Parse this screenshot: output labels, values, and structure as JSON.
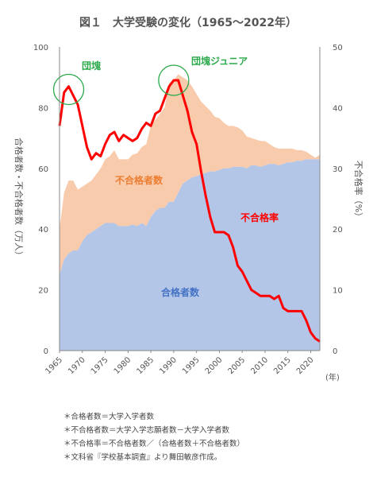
{
  "chart_data": {
    "type": "area",
    "title": "図１　大学受験の変化（1965〜2022年）",
    "ylabel_left": "合格者数・不合格者数（万人）",
    "ylabel_right": "不合格率（%）",
    "xlabel_unit": "(年)",
    "xlim": [
      1965,
      2022
    ],
    "ylim_left": [
      0,
      100
    ],
    "ylim_right": [
      0,
      50
    ],
    "x_ticks": [
      1965,
      1970,
      1975,
      1980,
      1985,
      1990,
      1995,
      2000,
      2005,
      2010,
      2015,
      2020
    ],
    "y_ticks_left": [
      0,
      20,
      40,
      60,
      80,
      100
    ],
    "y_ticks_right": [
      0,
      10,
      20,
      30,
      40,
      50
    ],
    "stacked": true,
    "series": [
      {
        "name": "合格者数",
        "axis": "left",
        "color": "#b4c6e7",
        "label_color": "#4472c4",
        "x": [
          1965,
          1966,
          1967,
          1968,
          1969,
          1970,
          1971,
          1972,
          1973,
          1974,
          1975,
          1976,
          1977,
          1978,
          1979,
          1980,
          1981,
          1982,
          1983,
          1984,
          1985,
          1986,
          1987,
          1988,
          1989,
          1990,
          1991,
          1992,
          1993,
          1994,
          1995,
          1996,
          1997,
          1998,
          1999,
          2000,
          2001,
          2002,
          2003,
          2004,
          2005,
          2006,
          2007,
          2008,
          2009,
          2010,
          2011,
          2012,
          2013,
          2014,
          2015,
          2016,
          2017,
          2018,
          2019,
          2020,
          2021,
          2022
        ],
        "values": [
          25,
          30,
          32,
          33,
          33,
          36,
          38,
          39,
          40,
          41,
          42,
          42,
          42,
          41,
          41,
          41,
          41.5,
          41,
          42,
          41,
          44,
          46,
          47,
          47,
          49,
          49,
          52,
          55,
          56,
          57,
          57.5,
          58,
          58.5,
          59,
          59,
          59.5,
          60,
          60,
          60.5,
          60.5,
          60.5,
          60,
          61,
          61,
          60.5,
          61,
          61.5,
          61.5,
          61,
          61.5,
          62,
          62,
          62.5,
          62.5,
          63,
          63,
          63,
          63
        ]
      },
      {
        "name": "不合格者数",
        "axis": "left",
        "color": "#f8cbad",
        "label_color": "#ed7d31",
        "x": [
          1965,
          1966,
          1967,
          1968,
          1969,
          1970,
          1971,
          1972,
          1973,
          1974,
          1975,
          1976,
          1977,
          1978,
          1979,
          1980,
          1981,
          1982,
          1983,
          1984,
          1985,
          1986,
          1987,
          1988,
          1989,
          1990,
          1991,
          1992,
          1993,
          1994,
          1995,
          1996,
          1997,
          1998,
          1999,
          2000,
          2001,
          2002,
          2003,
          2004,
          2005,
          2006,
          2007,
          2008,
          2009,
          2010,
          2011,
          2012,
          2013,
          2014,
          2015,
          2016,
          2017,
          2018,
          2019,
          2020,
          2021,
          2022
        ],
        "values": [
          15,
          22,
          24,
          23,
          20,
          18,
          17,
          17,
          18,
          19,
          21,
          22,
          24,
          22,
          22,
          22,
          23,
          24,
          25,
          27,
          30,
          30,
          31,
          33,
          39,
          40,
          39,
          35,
          33,
          30,
          27,
          24,
          22,
          20,
          18,
          17,
          15,
          14,
          13.5,
          13,
          12,
          10.5,
          9,
          8.5,
          8.5,
          8,
          6.5,
          5.5,
          5.5,
          5,
          4.5,
          4.5,
          3.5,
          3.5,
          2.5,
          1.5,
          0.5,
          1.5
        ]
      },
      {
        "name": "不合格率",
        "axis": "right",
        "type": "line",
        "color": "#ff0000",
        "label_color": "#ff0000",
        "x": [
          1965,
          1966,
          1967,
          1968,
          1969,
          1970,
          1971,
          1972,
          1973,
          1974,
          1975,
          1976,
          1977,
          1978,
          1979,
          1980,
          1981,
          1982,
          1983,
          1984,
          1985,
          1986,
          1987,
          1988,
          1989,
          1990,
          1991,
          1992,
          1993,
          1994,
          1995,
          1996,
          1997,
          1998,
          1999,
          2000,
          2001,
          2002,
          2003,
          2004,
          2005,
          2006,
          2007,
          2008,
          2009,
          2010,
          2011,
          2012,
          2013,
          2014,
          2015,
          2016,
          2017,
          2018,
          2019,
          2020,
          2021,
          2022
        ],
        "values": [
          37,
          42.5,
          43.5,
          42,
          40.5,
          37,
          33.5,
          31.5,
          32.5,
          32,
          34,
          35.5,
          36,
          34.5,
          35.5,
          35,
          34.5,
          35,
          36.5,
          37.5,
          37,
          39,
          39.5,
          41.5,
          43.5,
          44.5,
          44.5,
          42,
          39.5,
          36,
          34,
          29.5,
          25.5,
          22,
          19.5,
          19.5,
          19.5,
          19,
          17,
          14,
          13,
          11.5,
          10,
          9.5,
          9,
          9,
          9,
          8.5,
          9,
          7,
          6.5,
          6.5,
          6.5,
          6.5,
          5,
          3,
          2,
          1.5
        ]
      }
    ],
    "annotations": [
      {
        "text": "団塊",
        "color": "#2aaa4a",
        "circle_x": 1967,
        "circle_y": 43
      },
      {
        "text": "団塊ジュニア",
        "color": "#2aaa4a",
        "circle_x": 1990,
        "circle_y": 44.5
      }
    ],
    "series_labels": {
      "fail_count": "不合格者数",
      "pass_count": "合格者数",
      "fail_rate": "不合格率"
    }
  },
  "notes": [
    "＊合格者数＝大学入学者数",
    "＊不合格者数＝大学入学志願者数－大学入学者数",
    "＊不合格率＝不合格者数／（合格者数＋不合格者数）",
    "＊文科省『学校基本調査』より舞田敏彦作成。"
  ]
}
